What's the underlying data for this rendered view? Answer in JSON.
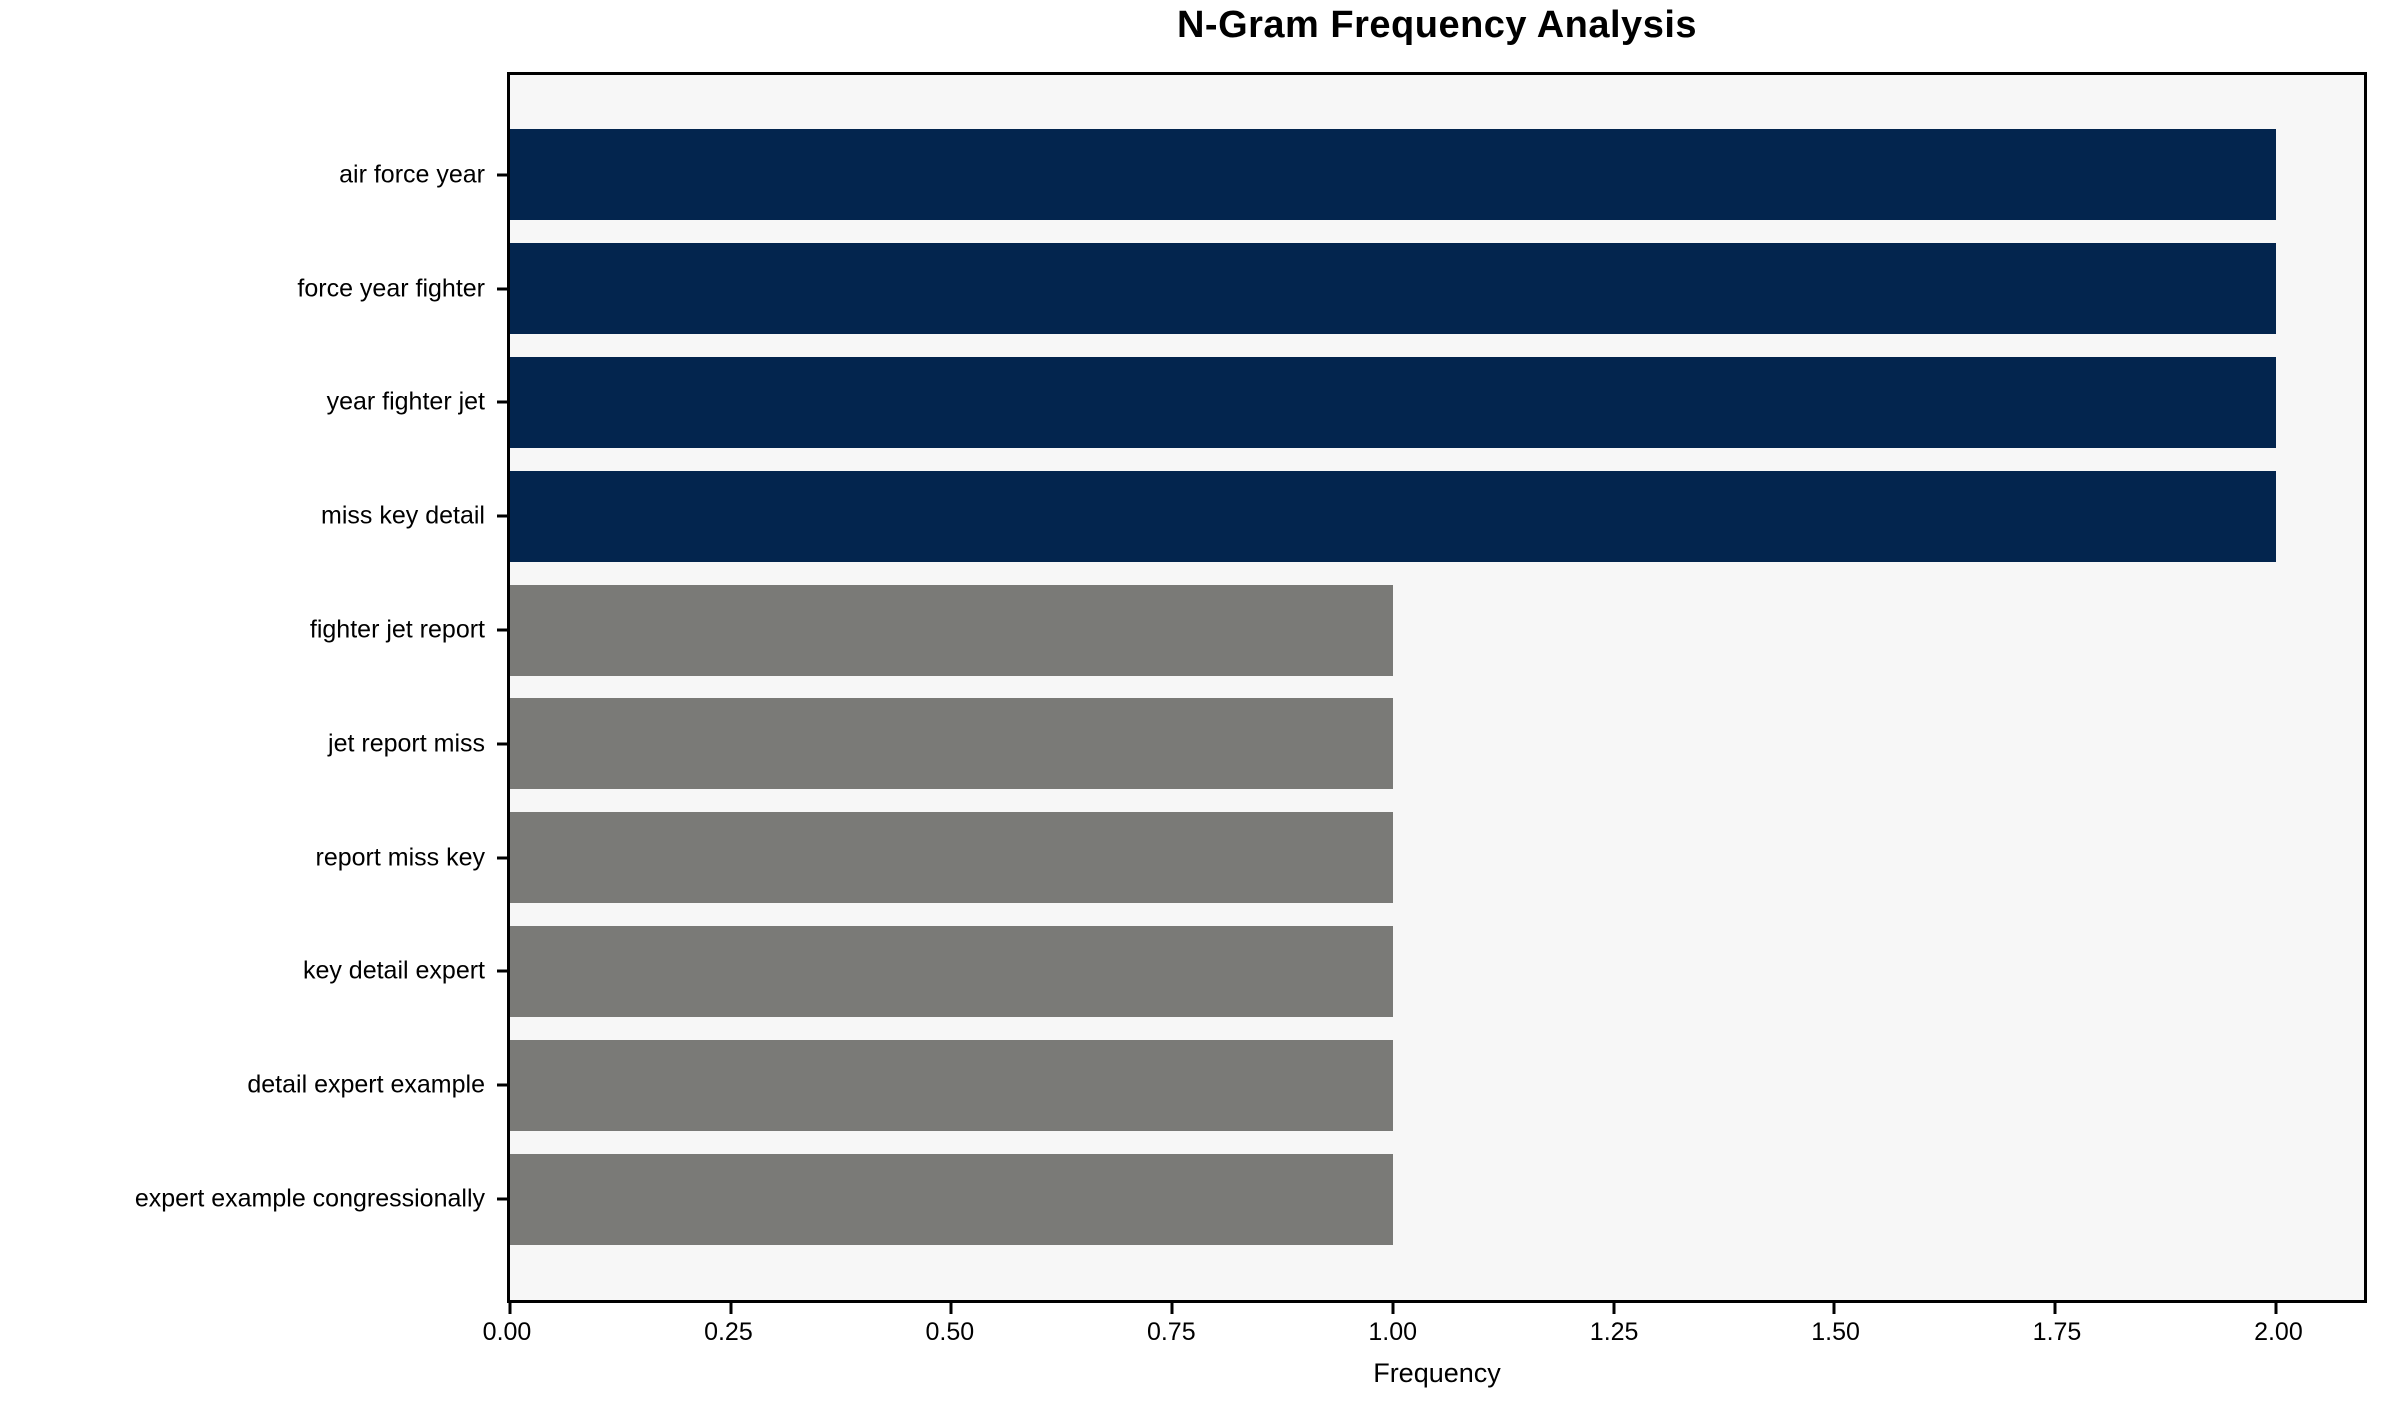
{
  "chart_data": {
    "type": "bar",
    "orientation": "horizontal",
    "title": "N-Gram Frequency Analysis",
    "xlabel": "Frequency",
    "ylabel": "",
    "categories": [
      "air force year",
      "force year fighter",
      "year fighter jet",
      "miss key detail",
      "fighter jet report",
      "jet report miss",
      "report miss key",
      "key detail expert",
      "detail expert example",
      "expert example congressionally"
    ],
    "values": [
      2,
      2,
      2,
      2,
      1,
      1,
      1,
      1,
      1,
      1
    ],
    "bar_colors": [
      "#03254e",
      "#03254e",
      "#03254e",
      "#03254e",
      "#7a7a77",
      "#7a7a77",
      "#7a7a77",
      "#7a7a77",
      "#7a7a77",
      "#7a7a77"
    ],
    "xlim": [
      0,
      2.1
    ],
    "xticks": [
      0,
      0.25,
      0.5,
      0.75,
      1.0,
      1.25,
      1.5,
      1.75,
      2.0
    ],
    "xtick_labels": [
      "0.00",
      "0.25",
      "0.50",
      "0.75",
      "1.00",
      "1.25",
      "1.50",
      "1.75",
      "2.00"
    ],
    "bar_height_fraction": 0.8,
    "grid": false,
    "legend_position": "none",
    "plot_background": "#f7f7f7",
    "figure_background": "#ffffff",
    "accent_color_high": "#03254e",
    "accent_color_low": "#7a7a77"
  }
}
